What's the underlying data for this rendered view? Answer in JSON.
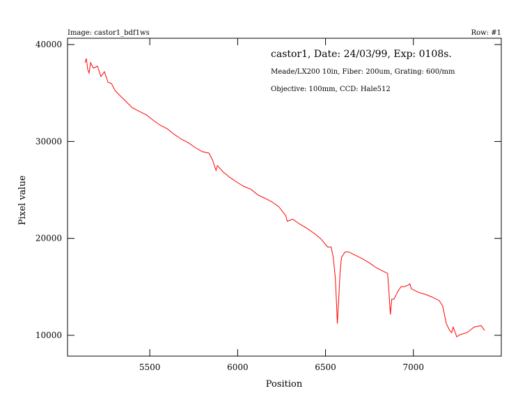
{
  "chart_data": {
    "type": "line",
    "title": "Image: castor1_bdf1ws",
    "subtitle": "Row: #1",
    "annotations": [
      "castor1, Date: 24/03/99, Exp: 0108s.",
      "Meade/LX200 10in, Fiber: 200um, Grating: 600/mm",
      "Objective: 100mm, CCD: Hale512"
    ],
    "x_label": "Position",
    "y_label": "Pixel value",
    "xlim": [
      5032,
      7500
    ],
    "ylim": [
      7850,
      40650
    ],
    "xticks": [
      5500,
      6000,
      6500,
      7000
    ],
    "yticks": [
      10000,
      20000,
      30000,
      40000
    ],
    "series": [
      {
        "name": "castor1",
        "color": "#ff0000",
        "x": [
          5131,
          5139,
          5147,
          5155,
          5163,
          5179,
          5202,
          5222,
          5242,
          5262,
          5282,
          5302,
          5321,
          5361,
          5401,
          5440,
          5480,
          5520,
          5560,
          5599,
          5639,
          5679,
          5718,
          5758,
          5798,
          5837,
          5857,
          5877,
          5885,
          5917,
          5956,
          5996,
          6036,
          6075,
          6115,
          6155,
          6194,
          6234,
          6274,
          6282,
          6313,
          6353,
          6393,
          6433,
          6472,
          6512,
          6532,
          6544,
          6556,
          6563,
          6567,
          6575,
          6583,
          6591,
          6611,
          6631,
          6671,
          6710,
          6750,
          6790,
          6829,
          6853,
          6861,
          6869,
          6877,
          6889,
          6909,
          6929,
          6948,
          6968,
          6980,
          6988,
          7028,
          7067,
          7107,
          7147,
          7167,
          7187,
          7206,
          7218,
          7226,
          7238,
          7246,
          7266,
          7306,
          7345,
          7385,
          7405
        ],
        "values": [
          38130,
          38560,
          37420,
          37060,
          38130,
          37560,
          37780,
          36700,
          37200,
          36120,
          35980,
          35260,
          34900,
          34190,
          33470,
          33110,
          32750,
          32180,
          31670,
          31310,
          30740,
          30240,
          29880,
          29380,
          28950,
          28800,
          28080,
          27010,
          27510,
          26860,
          26290,
          25790,
          25360,
          25070,
          24490,
          24140,
          23780,
          23270,
          22340,
          21770,
          21980,
          21480,
          21050,
          20550,
          19970,
          19110,
          19110,
          18030,
          15880,
          13010,
          11210,
          13730,
          16600,
          18030,
          18610,
          18610,
          18250,
          17890,
          17460,
          16960,
          16600,
          16380,
          14440,
          12150,
          13730,
          13730,
          14440,
          15020,
          15020,
          15160,
          15310,
          14800,
          14440,
          14230,
          13940,
          13580,
          13010,
          11210,
          10500,
          10280,
          10850,
          10280,
          9850,
          10070,
          10280,
          10850,
          11000,
          10500
        ]
      }
    ]
  }
}
